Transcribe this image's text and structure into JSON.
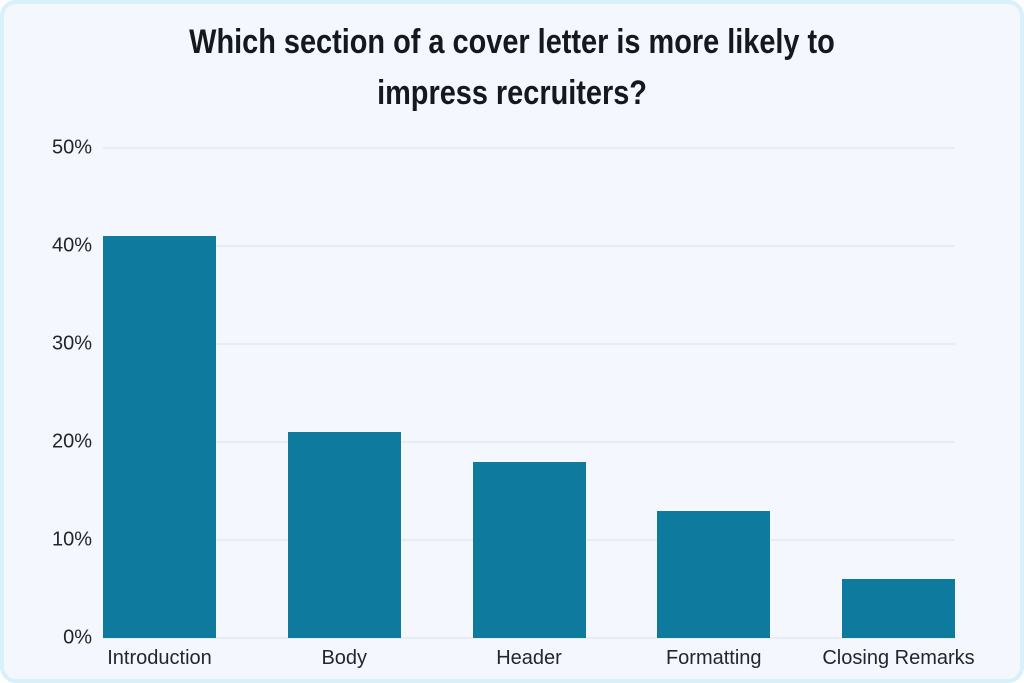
{
  "card": {
    "background_color": "#f4f7fd",
    "border_color": "#d7f0fa"
  },
  "chart_data": {
    "type": "bar",
    "title": "Which section of a cover letter is more likely to impress recruiters?",
    "title_lines": [
      "Which section of a cover letter is more likely to",
      "impress recruiters?"
    ],
    "categories": [
      "Introduction",
      "Body",
      "Header",
      "Formatting",
      "Closing Remarks"
    ],
    "values": [
      41,
      21,
      18,
      13,
      6
    ],
    "unit": "%",
    "xlabel": "",
    "ylabel": "",
    "ylim": [
      0,
      50
    ],
    "yticks": [
      "0%",
      "10%",
      "20%",
      "30%",
      "40%",
      "50%"
    ],
    "ytick_values": [
      0,
      10,
      20,
      30,
      40,
      50
    ],
    "grid": "horizontal",
    "legend": "none",
    "bar_color": "#0e7a9e",
    "gridline_color": "#e8edf3",
    "title_color": "#15181d",
    "label_color": "#22272f"
  }
}
